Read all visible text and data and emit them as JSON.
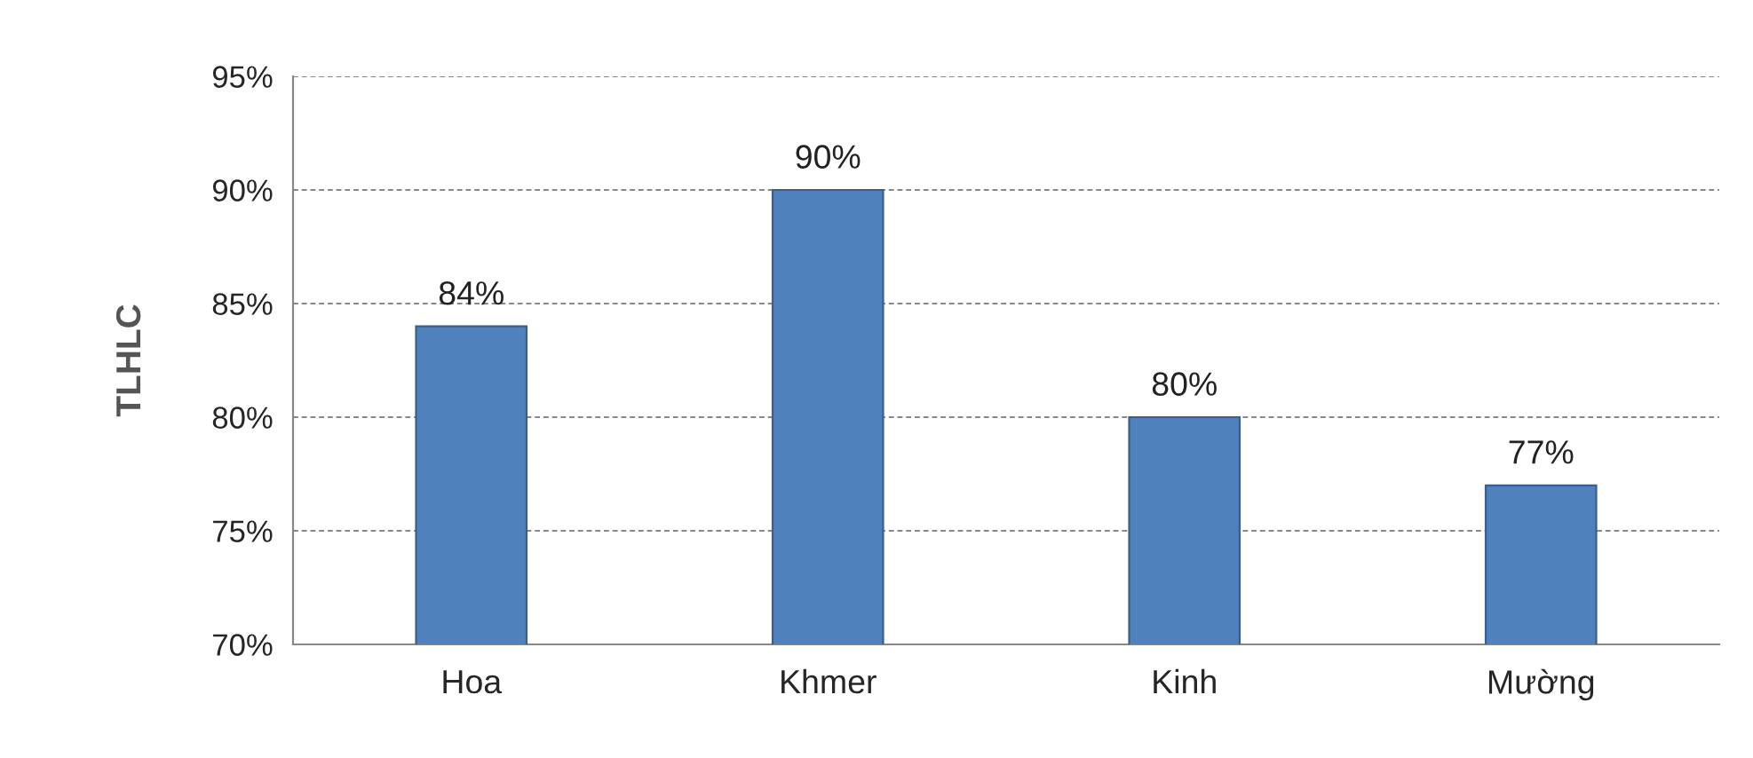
{
  "chart_data": {
    "type": "bar",
    "ylabel": "TLHLC",
    "categories": [
      "Hoa",
      "Khmer",
      "Kinh",
      "Mường"
    ],
    "values": [
      84,
      90,
      80,
      77
    ],
    "color": "#4f81bd",
    "value_labels": [
      "84%",
      "90%",
      "80%",
      "77%"
    ],
    "ylim": [
      70,
      95
    ],
    "yticks": [
      {
        "value": 70,
        "label": "70%"
      },
      {
        "value": 75,
        "label": "75%"
      },
      {
        "value": 80,
        "label": "80%"
      },
      {
        "value": 85,
        "label": "85%"
      },
      {
        "value": 90,
        "label": "90%"
      },
      {
        "value": 95,
        "label": "95%"
      }
    ],
    "grid": "y",
    "legend": false
  }
}
